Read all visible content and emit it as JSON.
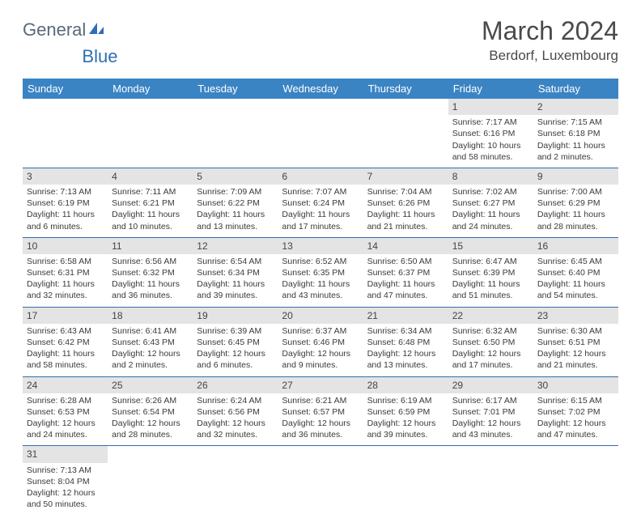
{
  "logo": {
    "text1": "General",
    "text2": "Blue"
  },
  "title": "March 2024",
  "location": "Berdorf, Luxembourg",
  "colors": {
    "header_bg": "#3b84c4",
    "header_text": "#ffffff",
    "daynum_bg": "#e4e4e4",
    "rule": "#2f6fb3",
    "logo_gray": "#5a6a78",
    "logo_blue": "#2f6fb3"
  },
  "weekdays": [
    "Sunday",
    "Monday",
    "Tuesday",
    "Wednesday",
    "Thursday",
    "Friday",
    "Saturday"
  ],
  "grid": [
    [
      null,
      null,
      null,
      null,
      null,
      {
        "n": "1",
        "sr": "Sunrise: 7:17 AM",
        "ss": "Sunset: 6:16 PM",
        "dl": "Daylight: 10 hours and 58 minutes."
      },
      {
        "n": "2",
        "sr": "Sunrise: 7:15 AM",
        "ss": "Sunset: 6:18 PM",
        "dl": "Daylight: 11 hours and 2 minutes."
      }
    ],
    [
      {
        "n": "3",
        "sr": "Sunrise: 7:13 AM",
        "ss": "Sunset: 6:19 PM",
        "dl": "Daylight: 11 hours and 6 minutes."
      },
      {
        "n": "4",
        "sr": "Sunrise: 7:11 AM",
        "ss": "Sunset: 6:21 PM",
        "dl": "Daylight: 11 hours and 10 minutes."
      },
      {
        "n": "5",
        "sr": "Sunrise: 7:09 AM",
        "ss": "Sunset: 6:22 PM",
        "dl": "Daylight: 11 hours and 13 minutes."
      },
      {
        "n": "6",
        "sr": "Sunrise: 7:07 AM",
        "ss": "Sunset: 6:24 PM",
        "dl": "Daylight: 11 hours and 17 minutes."
      },
      {
        "n": "7",
        "sr": "Sunrise: 7:04 AM",
        "ss": "Sunset: 6:26 PM",
        "dl": "Daylight: 11 hours and 21 minutes."
      },
      {
        "n": "8",
        "sr": "Sunrise: 7:02 AM",
        "ss": "Sunset: 6:27 PM",
        "dl": "Daylight: 11 hours and 24 minutes."
      },
      {
        "n": "9",
        "sr": "Sunrise: 7:00 AM",
        "ss": "Sunset: 6:29 PM",
        "dl": "Daylight: 11 hours and 28 minutes."
      }
    ],
    [
      {
        "n": "10",
        "sr": "Sunrise: 6:58 AM",
        "ss": "Sunset: 6:31 PM",
        "dl": "Daylight: 11 hours and 32 minutes."
      },
      {
        "n": "11",
        "sr": "Sunrise: 6:56 AM",
        "ss": "Sunset: 6:32 PM",
        "dl": "Daylight: 11 hours and 36 minutes."
      },
      {
        "n": "12",
        "sr": "Sunrise: 6:54 AM",
        "ss": "Sunset: 6:34 PM",
        "dl": "Daylight: 11 hours and 39 minutes."
      },
      {
        "n": "13",
        "sr": "Sunrise: 6:52 AM",
        "ss": "Sunset: 6:35 PM",
        "dl": "Daylight: 11 hours and 43 minutes."
      },
      {
        "n": "14",
        "sr": "Sunrise: 6:50 AM",
        "ss": "Sunset: 6:37 PM",
        "dl": "Daylight: 11 hours and 47 minutes."
      },
      {
        "n": "15",
        "sr": "Sunrise: 6:47 AM",
        "ss": "Sunset: 6:39 PM",
        "dl": "Daylight: 11 hours and 51 minutes."
      },
      {
        "n": "16",
        "sr": "Sunrise: 6:45 AM",
        "ss": "Sunset: 6:40 PM",
        "dl": "Daylight: 11 hours and 54 minutes."
      }
    ],
    [
      {
        "n": "17",
        "sr": "Sunrise: 6:43 AM",
        "ss": "Sunset: 6:42 PM",
        "dl": "Daylight: 11 hours and 58 minutes."
      },
      {
        "n": "18",
        "sr": "Sunrise: 6:41 AM",
        "ss": "Sunset: 6:43 PM",
        "dl": "Daylight: 12 hours and 2 minutes."
      },
      {
        "n": "19",
        "sr": "Sunrise: 6:39 AM",
        "ss": "Sunset: 6:45 PM",
        "dl": "Daylight: 12 hours and 6 minutes."
      },
      {
        "n": "20",
        "sr": "Sunrise: 6:37 AM",
        "ss": "Sunset: 6:46 PM",
        "dl": "Daylight: 12 hours and 9 minutes."
      },
      {
        "n": "21",
        "sr": "Sunrise: 6:34 AM",
        "ss": "Sunset: 6:48 PM",
        "dl": "Daylight: 12 hours and 13 minutes."
      },
      {
        "n": "22",
        "sr": "Sunrise: 6:32 AM",
        "ss": "Sunset: 6:50 PM",
        "dl": "Daylight: 12 hours and 17 minutes."
      },
      {
        "n": "23",
        "sr": "Sunrise: 6:30 AM",
        "ss": "Sunset: 6:51 PM",
        "dl": "Daylight: 12 hours and 21 minutes."
      }
    ],
    [
      {
        "n": "24",
        "sr": "Sunrise: 6:28 AM",
        "ss": "Sunset: 6:53 PM",
        "dl": "Daylight: 12 hours and 24 minutes."
      },
      {
        "n": "25",
        "sr": "Sunrise: 6:26 AM",
        "ss": "Sunset: 6:54 PM",
        "dl": "Daylight: 12 hours and 28 minutes."
      },
      {
        "n": "26",
        "sr": "Sunrise: 6:24 AM",
        "ss": "Sunset: 6:56 PM",
        "dl": "Daylight: 12 hours and 32 minutes."
      },
      {
        "n": "27",
        "sr": "Sunrise: 6:21 AM",
        "ss": "Sunset: 6:57 PM",
        "dl": "Daylight: 12 hours and 36 minutes."
      },
      {
        "n": "28",
        "sr": "Sunrise: 6:19 AM",
        "ss": "Sunset: 6:59 PM",
        "dl": "Daylight: 12 hours and 39 minutes."
      },
      {
        "n": "29",
        "sr": "Sunrise: 6:17 AM",
        "ss": "Sunset: 7:01 PM",
        "dl": "Daylight: 12 hours and 43 minutes."
      },
      {
        "n": "30",
        "sr": "Sunrise: 6:15 AM",
        "ss": "Sunset: 7:02 PM",
        "dl": "Daylight: 12 hours and 47 minutes."
      }
    ],
    [
      {
        "n": "31",
        "sr": "Sunrise: 7:13 AM",
        "ss": "Sunset: 8:04 PM",
        "dl": "Daylight: 12 hours and 50 minutes."
      },
      null,
      null,
      null,
      null,
      null,
      null
    ]
  ]
}
